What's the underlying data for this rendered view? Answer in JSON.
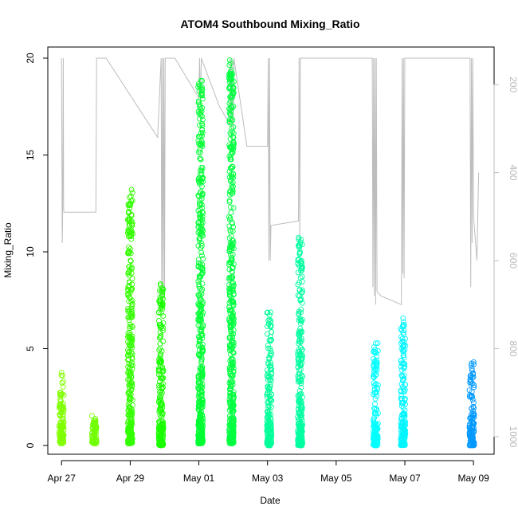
{
  "chart_data": {
    "type": "scatter",
    "title": "ATOM4 Southbound Mixing_Ratio",
    "xlabel": "Date",
    "ylabel": "Mixing_Ratio",
    "xlim": [
      -0.4,
      12.6
    ],
    "ylim": [
      0,
      20
    ],
    "y_ticks": [
      0,
      5,
      10,
      15,
      20
    ],
    "x_ticks": [
      {
        "x": 0,
        "label": "Apr 27"
      },
      {
        "x": 2,
        "label": "Apr 29"
      },
      {
        "x": 4,
        "label": "May 01"
      },
      {
        "x": 6,
        "label": "May 03"
      },
      {
        "x": 8,
        "label": "May 05"
      },
      {
        "x": 10,
        "label": "May 07"
      },
      {
        "x": 12,
        "label": "May 09"
      }
    ],
    "x_origin_date": "Apr 27",
    "secondary_axis": {
      "side": "right",
      "reversed": true,
      "ticks": [
        200,
        400,
        600,
        800,
        1000
      ],
      "range": [
        140,
        1020
      ],
      "color": "#bebebe"
    },
    "marker": "open-circle",
    "color_scale": "rainbow (green → cyan → blue by time)",
    "mixing_ratio_clusters": [
      {
        "x": 0.0,
        "y_range": [
          0.1,
          3.8
        ],
        "color": "#80ff00"
      },
      {
        "x": 0.95,
        "y_range": [
          0.1,
          1.6
        ],
        "color": "#70ff00"
      },
      {
        "x": 2.0,
        "y_range": [
          0.1,
          13.3
        ],
        "color": "#33ff00"
      },
      {
        "x": 2.9,
        "y_range": [
          0.0,
          8.5
        ],
        "color": "#1aff00"
      },
      {
        "x": 4.05,
        "y_range": [
          0.1,
          19.0
        ],
        "color": "#00ff33"
      },
      {
        "x": 4.95,
        "y_range": [
          0.1,
          19.9
        ],
        "color": "#00ff40"
      },
      {
        "x": 6.05,
        "y_range": [
          0.0,
          6.9
        ],
        "color": "#00ff99"
      },
      {
        "x": 6.95,
        "y_range": [
          0.0,
          10.8
        ],
        "color": "#00ffa0"
      },
      {
        "x": 9.15,
        "y_range": [
          0.0,
          5.3
        ],
        "color": "#00ffff"
      },
      {
        "x": 9.95,
        "y_range": [
          0.0,
          6.6
        ],
        "color": "#00f5ff"
      },
      {
        "x": 11.95,
        "y_range": [
          0.0,
          4.4
        ],
        "color": "#0099ff"
      }
    ],
    "altitude_trace": [
      [
        0.0,
        140
      ],
      [
        0.02,
        560
      ],
      [
        0.03,
        520
      ],
      [
        0.05,
        140
      ],
      [
        0.06,
        480
      ],
      [
        0.07,
        490
      ],
      [
        1.0,
        490
      ],
      [
        1.02,
        140
      ],
      [
        1.3,
        140
      ],
      [
        2.8,
        320
      ],
      [
        2.9,
        140
      ],
      [
        2.92,
        700
      ],
      [
        2.94,
        140
      ],
      [
        2.96,
        690
      ],
      [
        2.98,
        140
      ],
      [
        3.0,
        680
      ],
      [
        3.02,
        140
      ],
      [
        3.3,
        140
      ],
      [
        4.0,
        230
      ],
      [
        4.02,
        140
      ],
      [
        4.05,
        250
      ],
      [
        4.07,
        140
      ],
      [
        4.6,
        250
      ],
      [
        4.9,
        290
      ],
      [
        4.92,
        140
      ],
      [
        4.94,
        280
      ],
      [
        4.96,
        140
      ],
      [
        5.0,
        300
      ],
      [
        5.02,
        140
      ],
      [
        5.4,
        340
      ],
      [
        6.0,
        340
      ],
      [
        6.02,
        140
      ],
      [
        6.04,
        600
      ],
      [
        6.06,
        140
      ],
      [
        6.08,
        600
      ],
      [
        6.1,
        520
      ],
      [
        6.9,
        510
      ],
      [
        6.92,
        140
      ],
      [
        6.94,
        560
      ],
      [
        6.96,
        140
      ],
      [
        9.05,
        140
      ],
      [
        9.07,
        660
      ],
      [
        9.09,
        140
      ],
      [
        9.11,
        680
      ],
      [
        9.13,
        140
      ],
      [
        9.15,
        700
      ],
      [
        9.17,
        140
      ],
      [
        9.19,
        670
      ],
      [
        9.3,
        680
      ],
      [
        9.9,
        700
      ],
      [
        9.92,
        140
      ],
      [
        9.94,
        630
      ],
      [
        9.96,
        140
      ],
      [
        9.98,
        640
      ],
      [
        10.0,
        140
      ],
      [
        11.9,
        140
      ],
      [
        11.92,
        660
      ],
      [
        11.94,
        140
      ],
      [
        11.96,
        560
      ],
      [
        11.98,
        140
      ],
      [
        12.0,
        500
      ],
      [
        12.1,
        600
      ],
      [
        12.15,
        400
      ]
    ]
  }
}
